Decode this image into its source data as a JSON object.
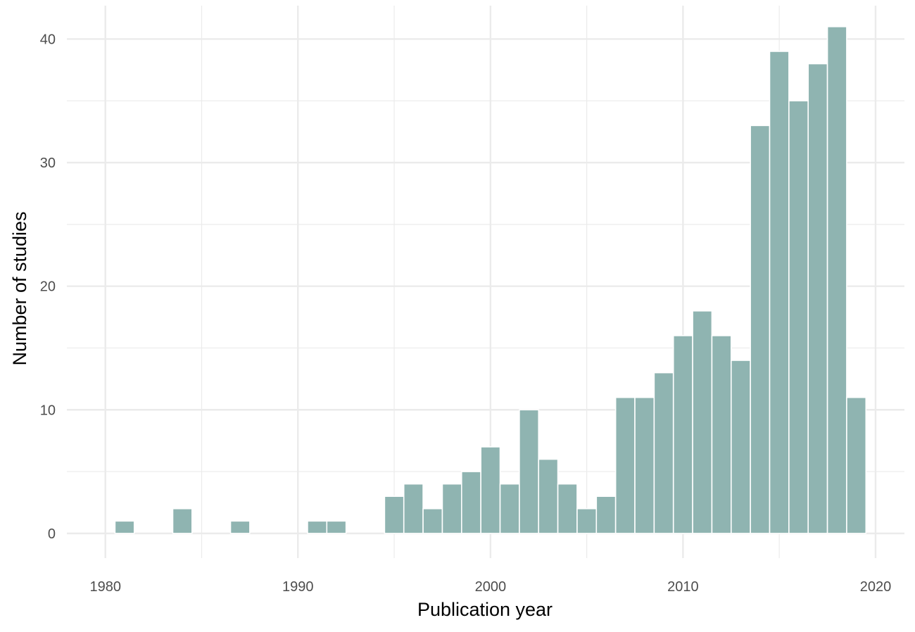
{
  "chart_data": {
    "type": "bar",
    "title": "",
    "xlabel": "Publication year",
    "ylabel": "Number of studies",
    "xlim": [
      1978,
      2021.5
    ],
    "ylim": [
      -2,
      42.7
    ],
    "x_ticks": [
      1980,
      1990,
      2000,
      2010,
      2020
    ],
    "y_ticks": [
      0,
      10,
      20,
      30,
      40
    ],
    "x_tick_labels": [
      "1980",
      "1990",
      "2000",
      "2010",
      "2020"
    ],
    "y_tick_labels": [
      "0",
      "10",
      "20",
      "30",
      "40"
    ],
    "grid": true,
    "legend": "none",
    "bar_color": "#8fb4b1",
    "background_color": "#ffffff",
    "grid_color": "#ebebeb",
    "x": [
      1981,
      1984,
      1987,
      1991,
      1992,
      1995,
      1996,
      1997,
      1998,
      1999,
      2000,
      2001,
      2002,
      2003,
      2004,
      2005,
      2006,
      2007,
      2008,
      2009,
      2010,
      2011,
      2012,
      2013,
      2014,
      2015,
      2016,
      2017,
      2018,
      2019
    ],
    "values": [
      1,
      2,
      1,
      1,
      1,
      3,
      4,
      2,
      4,
      5,
      7,
      4,
      10,
      6,
      4,
      2,
      3,
      11,
      11,
      13,
      16,
      18,
      16,
      14,
      33,
      39,
      35,
      38,
      41,
      11
    ]
  }
}
